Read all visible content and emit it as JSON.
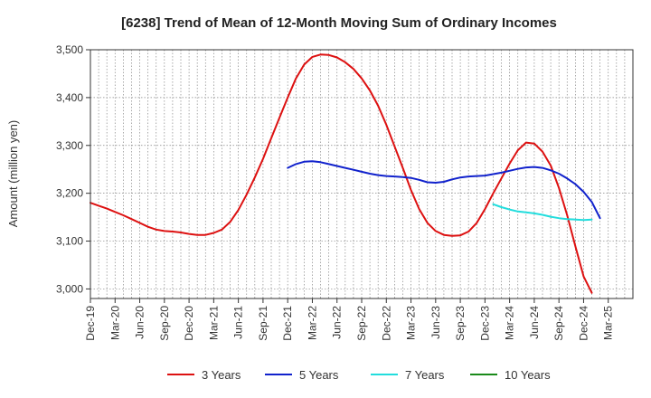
{
  "chart_data": {
    "type": "line",
    "title": "[6238]  Trend of Mean of 12-Month Moving Sum of Ordinary Incomes",
    "ylabel": "Amount (million yen)",
    "xlabel": "",
    "ylim": [
      2980,
      3500
    ],
    "yticks": [
      3000,
      3100,
      3200,
      3300,
      3400,
      3500
    ],
    "ytick_labels": [
      "3,000",
      "3,100",
      "3,200",
      "3,300",
      "3,400",
      "3,500"
    ],
    "xlim": [
      0,
      66
    ],
    "xtick_labels": [
      "Dec-19",
      "Mar-20",
      "Jun-20",
      "Sep-20",
      "Dec-20",
      "Mar-21",
      "Jun-21",
      "Sep-21",
      "Dec-21",
      "Mar-22",
      "Jun-22",
      "Sep-22",
      "Dec-22",
      "Mar-23",
      "Jun-23",
      "Sep-23",
      "Dec-23",
      "Mar-24",
      "Jun-24",
      "Sep-24",
      "Dec-24",
      "Mar-25"
    ],
    "grid": true,
    "legend_position": "bottom",
    "series": [
      {
        "name": "3 Years",
        "color": "#dd1111",
        "start": 0,
        "values": [
          3180,
          3174,
          3168,
          3161,
          3154,
          3146,
          3138,
          3130,
          3124,
          3121,
          3120,
          3118,
          3115,
          3113,
          3113,
          3117,
          3124,
          3140,
          3165,
          3197,
          3233,
          3272,
          3315,
          3358,
          3400,
          3440,
          3469,
          3485,
          3490,
          3489,
          3484,
          3474,
          3460,
          3440,
          3415,
          3383,
          3343,
          3298,
          3253,
          3207,
          3167,
          3138,
          3121,
          3113,
          3111,
          3112,
          3120,
          3138,
          3167,
          3200,
          3231,
          3262,
          3290,
          3306,
          3304,
          3287,
          3258,
          3211,
          3154,
          3089,
          3026,
          2992
        ]
      },
      {
        "name": "5 Years",
        "color": "#1122cc",
        "start": 24,
        "values": [
          3253,
          3261,
          3266,
          3267,
          3265,
          3261,
          3257,
          3253,
          3249,
          3245,
          3241,
          3238,
          3236,
          3235,
          3234,
          3232,
          3228,
          3223,
          3222,
          3224,
          3229,
          3233,
          3235,
          3236,
          3237,
          3240,
          3243,
          3247,
          3251,
          3254,
          3255,
          3253,
          3248,
          3241,
          3231,
          3219,
          3203,
          3182,
          3148
        ]
      },
      {
        "name": "7 Years",
        "color": "#22dddd",
        "start": 49,
        "values": [
          3177,
          3171,
          3166,
          3162,
          3160,
          3158,
          3155,
          3151,
          3148,
          3146,
          3145,
          3144,
          3145
        ]
      },
      {
        "name": "10 Years",
        "color": "#1a8a1a",
        "start": 61,
        "values": []
      }
    ]
  }
}
